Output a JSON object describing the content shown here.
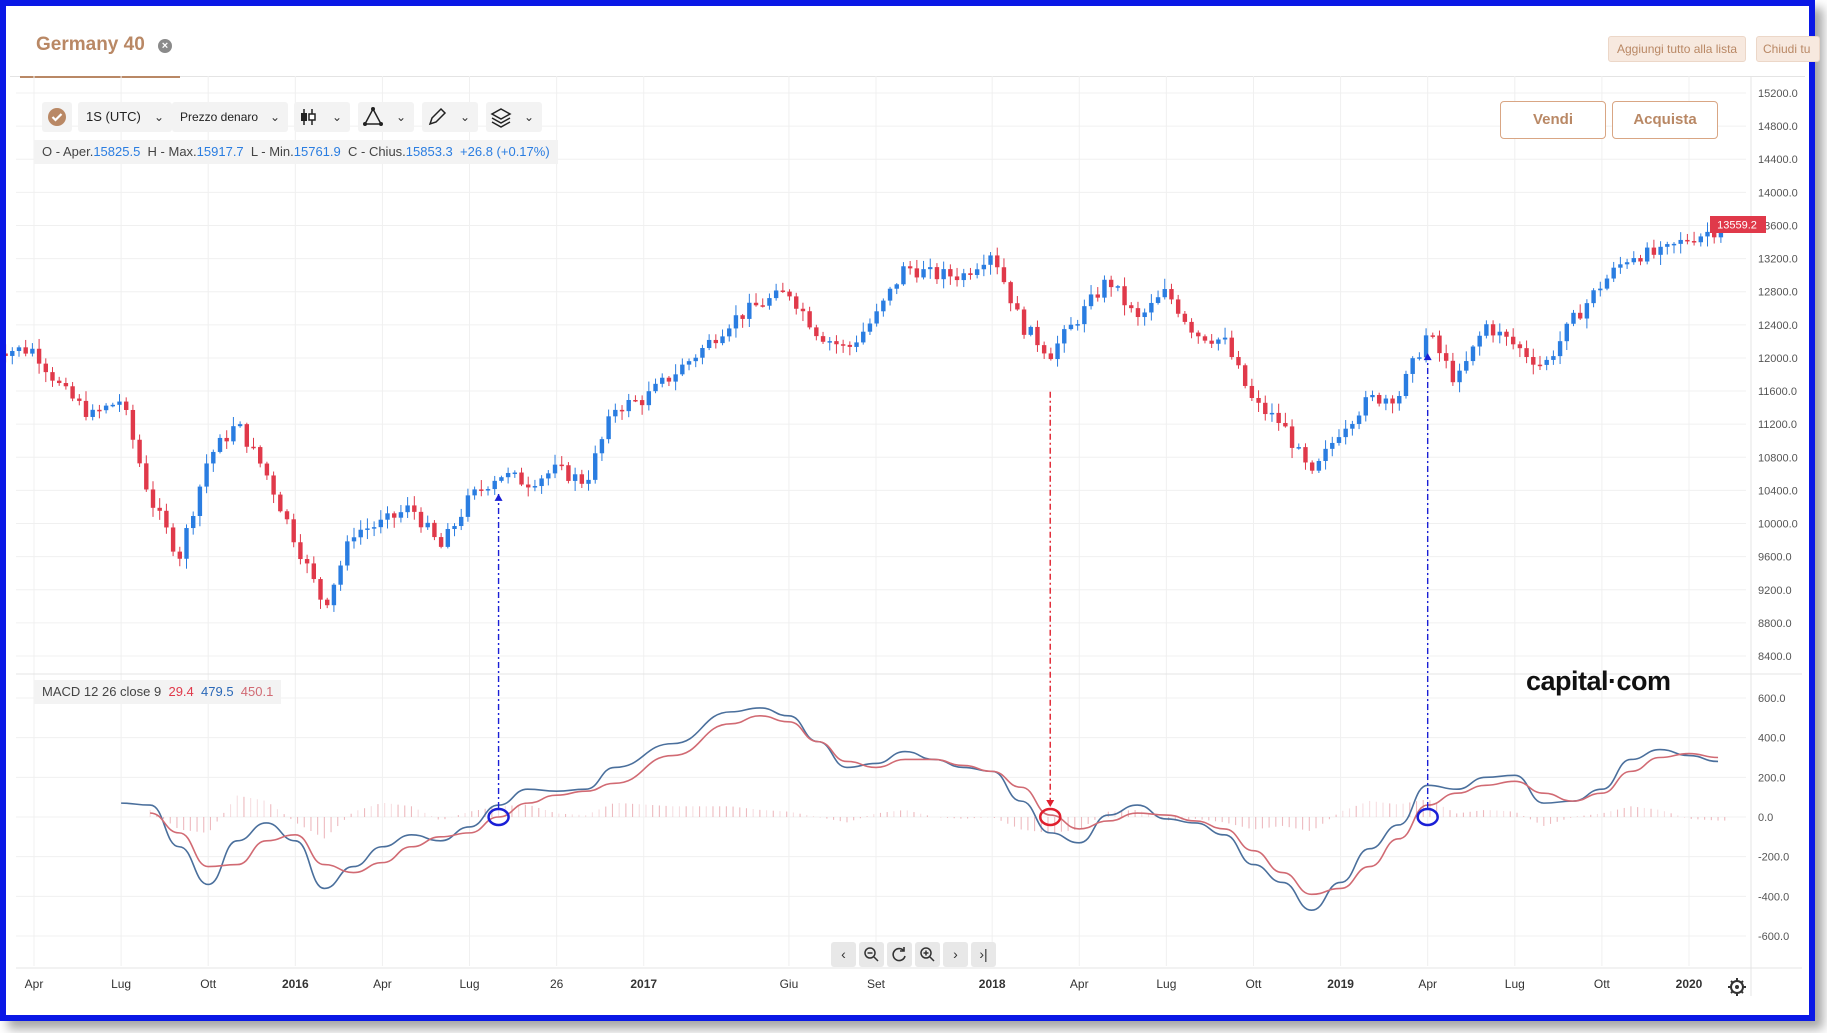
{
  "tab": {
    "title": "Germany 40"
  },
  "top_buttons": {
    "add_all": "Aggiungi tutto alla lista",
    "close_all": "Chiudi tu"
  },
  "toolbar": {
    "timeframe": "1S (UTC)",
    "price_type": "Prezzo denaro"
  },
  "ohlc": {
    "open_label": "O - Aper.",
    "open": "15825.5",
    "high_label": "H - Max.",
    "high": "15917.7",
    "low_label": "L - Min.",
    "low": "15761.9",
    "close_label": "C - Chius.",
    "close": "15853.3",
    "change": "+26.8 (+0.17%)"
  },
  "trade": {
    "sell": "Vendi",
    "buy": "Acquista"
  },
  "macd_legend": {
    "label": "MACD 12 26 close 9",
    "v1": "29.4",
    "v2": "479.5",
    "v3": "450.1"
  },
  "logo": "capital·com",
  "colors": {
    "up": "#2a7de1",
    "down": "#e0394a",
    "macd_line": "#4a6f9c",
    "signal_line": "#d16a73",
    "accent": "#b98865",
    "arrow_blue": "#1a1fd6",
    "arrow_red": "#e0202e"
  },
  "chart_data": [
    {
      "type": "candlestick",
      "title": "Germany 40",
      "price_axis_ticks": [
        "15200.0",
        "14800.0",
        "14400.0",
        "14000.0",
        "13600.0",
        "13200.0",
        "12800.0",
        "12400.0",
        "12000.0",
        "11600.0",
        "11200.0",
        "10800.0",
        "10400.0",
        "10000.0",
        "9600.0",
        "9200.0",
        "8800.0",
        "8400.0"
      ],
      "last_price_label": "13559.2",
      "ylim": [
        8400,
        15200
      ],
      "x_tick_labels": [
        "Apr",
        "Lug",
        "Ott",
        "2016",
        "Apr",
        "Lug",
        "26",
        "2017",
        "Giu",
        "Set",
        "2018",
        "Apr",
        "Lug",
        "Ott",
        "2019",
        "Apr",
        "Lug",
        "Ott",
        "2020"
      ],
      "close_path": [
        {
          "date": "2015-04",
          "close": 12100
        },
        {
          "date": "2015-05",
          "close": 11600
        },
        {
          "date": "2015-06",
          "close": 11300
        },
        {
          "date": "2015-07",
          "close": 11500
        },
        {
          "date": "2015-08",
          "close": 10300
        },
        {
          "date": "2015-09",
          "close": 9600
        },
        {
          "date": "2015-10",
          "close": 10800
        },
        {
          "date": "2015-11",
          "close": 11200
        },
        {
          "date": "2015-12",
          "close": 10600
        },
        {
          "date": "2016-01",
          "close": 9800
        },
        {
          "date": "2016-02",
          "close": 9000
        },
        {
          "date": "2016-03",
          "close": 9900
        },
        {
          "date": "2016-04",
          "close": 10000
        },
        {
          "date": "2016-05",
          "close": 10200
        },
        {
          "date": "2016-06",
          "close": 9700
        },
        {
          "date": "2016-07",
          "close": 10300
        },
        {
          "date": "2016-08",
          "close": 10600
        },
        {
          "date": "2016-09",
          "close": 10500
        },
        {
          "date": "2016-10",
          "close": 10650
        },
        {
          "date": "2016-11",
          "close": 10500
        },
        {
          "date": "2016-12",
          "close": 11400
        },
        {
          "date": "2017-01",
          "close": 11500
        },
        {
          "date": "2017-03",
          "close": 12100
        },
        {
          "date": "2017-04",
          "close": 12450
        },
        {
          "date": "2017-05",
          "close": 12650
        },
        {
          "date": "2017-06",
          "close": 12800
        },
        {
          "date": "2017-07",
          "close": 12300
        },
        {
          "date": "2017-08",
          "close": 12100
        },
        {
          "date": "2017-09",
          "close": 12500
        },
        {
          "date": "2017-10",
          "close": 13100
        },
        {
          "date": "2017-11",
          "close": 13000
        },
        {
          "date": "2017-12",
          "close": 13000
        },
        {
          "date": "2018-01",
          "close": 13300
        },
        {
          "date": "2018-02",
          "close": 12400
        },
        {
          "date": "2018-03",
          "close": 12050
        },
        {
          "date": "2018-04",
          "close": 12500
        },
        {
          "date": "2018-05",
          "close": 12950
        },
        {
          "date": "2018-06",
          "close": 12450
        },
        {
          "date": "2018-07",
          "close": 12800
        },
        {
          "date": "2018-08",
          "close": 12300
        },
        {
          "date": "2018-09",
          "close": 12200
        },
        {
          "date": "2018-10",
          "close": 11450
        },
        {
          "date": "2018-11",
          "close": 11200
        },
        {
          "date": "2018-12",
          "close": 10550
        },
        {
          "date": "2019-01",
          "close": 11150
        },
        {
          "date": "2019-02",
          "close": 11500
        },
        {
          "date": "2019-03",
          "close": 11550
        },
        {
          "date": "2019-04",
          "close": 12300
        },
        {
          "date": "2019-05",
          "close": 11700
        },
        {
          "date": "2019-06",
          "close": 12400
        },
        {
          "date": "2019-07",
          "close": 12150
        },
        {
          "date": "2019-08",
          "close": 11900
        },
        {
          "date": "2019-09",
          "close": 12450
        },
        {
          "date": "2019-10",
          "close": 12900
        },
        {
          "date": "2019-11",
          "close": 13250
        },
        {
          "date": "2019-12",
          "close": 13250
        },
        {
          "date": "2020-01",
          "close": 13450
        },
        {
          "date": "2020-02",
          "close": 13560
        }
      ]
    },
    {
      "type": "line",
      "title": "MACD 12 26 close 9",
      "y_axis_ticks": [
        "600.0",
        "400.0",
        "200.0",
        "0.0",
        "-200.0",
        "-400.0",
        "-600.0"
      ],
      "ylim": [
        -600,
        600
      ],
      "series": [
        {
          "name": "MACD",
          "values": [
            {
              "date": "2015-07",
              "y": 70
            },
            {
              "date": "2015-08",
              "y": 60
            },
            {
              "date": "2015-09",
              "y": -150
            },
            {
              "date": "2015-10",
              "y": -340
            },
            {
              "date": "2015-11",
              "y": -120
            },
            {
              "date": "2015-12",
              "y": -30
            },
            {
              "date": "2016-01",
              "y": -120
            },
            {
              "date": "2016-02",
              "y": -360
            },
            {
              "date": "2016-03",
              "y": -250
            },
            {
              "date": "2016-04",
              "y": -150
            },
            {
              "date": "2016-05",
              "y": -90
            },
            {
              "date": "2016-06",
              "y": -120
            },
            {
              "date": "2016-07",
              "y": -50
            },
            {
              "date": "2016-08",
              "y": 60
            },
            {
              "date": "2016-09",
              "y": 140
            },
            {
              "date": "2016-10",
              "y": 130
            },
            {
              "date": "2016-11",
              "y": 140
            },
            {
              "date": "2016-12",
              "y": 250
            },
            {
              "date": "2017-02",
              "y": 370
            },
            {
              "date": "2017-04",
              "y": 530
            },
            {
              "date": "2017-05",
              "y": 550
            },
            {
              "date": "2017-06",
              "y": 510
            },
            {
              "date": "2017-07",
              "y": 380
            },
            {
              "date": "2017-08",
              "y": 250
            },
            {
              "date": "2017-09",
              "y": 270
            },
            {
              "date": "2017-10",
              "y": 330
            },
            {
              "date": "2017-11",
              "y": 290
            },
            {
              "date": "2017-12",
              "y": 250
            },
            {
              "date": "2018-01",
              "y": 230
            },
            {
              "date": "2018-02",
              "y": 80
            },
            {
              "date": "2018-03",
              "y": -80
            },
            {
              "date": "2018-04",
              "y": -130
            },
            {
              "date": "2018-05",
              "y": 10
            },
            {
              "date": "2018-06",
              "y": 60
            },
            {
              "date": "2018-07",
              "y": -10
            },
            {
              "date": "2018-08",
              "y": -30
            },
            {
              "date": "2018-09",
              "y": -90
            },
            {
              "date": "2018-10",
              "y": -240
            },
            {
              "date": "2018-11",
              "y": -330
            },
            {
              "date": "2018-12",
              "y": -470
            },
            {
              "date": "2019-01",
              "y": -330
            },
            {
              "date": "2019-02",
              "y": -160
            },
            {
              "date": "2019-03",
              "y": -40
            },
            {
              "date": "2019-04",
              "y": 160
            },
            {
              "date": "2019-05",
              "y": 140
            },
            {
              "date": "2019-06",
              "y": 200
            },
            {
              "date": "2019-07",
              "y": 210
            },
            {
              "date": "2019-08",
              "y": 70
            },
            {
              "date": "2019-09",
              "y": 80
            },
            {
              "date": "2019-10",
              "y": 140
            },
            {
              "date": "2019-11",
              "y": 290
            },
            {
              "date": "2019-12",
              "y": 340
            },
            {
              "date": "2020-01",
              "y": 310
            },
            {
              "date": "2020-02",
              "y": 280
            }
          ]
        },
        {
          "name": "Signal",
          "values": [
            {
              "date": "2015-08",
              "y": 20
            },
            {
              "date": "2015-09",
              "y": -80
            },
            {
              "date": "2015-10",
              "y": -250
            },
            {
              "date": "2015-11",
              "y": -240
            },
            {
              "date": "2015-12",
              "y": -120
            },
            {
              "date": "2016-01",
              "y": -90
            },
            {
              "date": "2016-02",
              "y": -240
            },
            {
              "date": "2016-03",
              "y": -280
            },
            {
              "date": "2016-04",
              "y": -230
            },
            {
              "date": "2016-05",
              "y": -150
            },
            {
              "date": "2016-06",
              "y": -100
            },
            {
              "date": "2016-07",
              "y": -80
            },
            {
              "date": "2016-08",
              "y": 0
            },
            {
              "date": "2016-09",
              "y": 70
            },
            {
              "date": "2016-10",
              "y": 110
            },
            {
              "date": "2016-11",
              "y": 130
            },
            {
              "date": "2016-12",
              "y": 170
            },
            {
              "date": "2017-02",
              "y": 310
            },
            {
              "date": "2017-04",
              "y": 470
            },
            {
              "date": "2017-05",
              "y": 510
            },
            {
              "date": "2017-06",
              "y": 480
            },
            {
              "date": "2017-07",
              "y": 380
            },
            {
              "date": "2017-08",
              "y": 280
            },
            {
              "date": "2017-09",
              "y": 250
            },
            {
              "date": "2017-10",
              "y": 290
            },
            {
              "date": "2017-11",
              "y": 290
            },
            {
              "date": "2017-12",
              "y": 260
            },
            {
              "date": "2018-01",
              "y": 230
            },
            {
              "date": "2018-02",
              "y": 150
            },
            {
              "date": "2018-03",
              "y": 10
            },
            {
              "date": "2018-04",
              "y": -60
            },
            {
              "date": "2018-05",
              "y": -20
            },
            {
              "date": "2018-06",
              "y": 20
            },
            {
              "date": "2018-07",
              "y": 10
            },
            {
              "date": "2018-08",
              "y": -20
            },
            {
              "date": "2018-09",
              "y": -60
            },
            {
              "date": "2018-10",
              "y": -170
            },
            {
              "date": "2018-11",
              "y": -280
            },
            {
              "date": "2018-12",
              "y": -390
            },
            {
              "date": "2019-01",
              "y": -360
            },
            {
              "date": "2019-02",
              "y": -250
            },
            {
              "date": "2019-03",
              "y": -110
            },
            {
              "date": "2019-04",
              "y": 60
            },
            {
              "date": "2019-05",
              "y": 120
            },
            {
              "date": "2019-06",
              "y": 160
            },
            {
              "date": "2019-07",
              "y": 180
            },
            {
              "date": "2019-08",
              "y": 120
            },
            {
              "date": "2019-09",
              "y": 80
            },
            {
              "date": "2019-10",
              "y": 120
            },
            {
              "date": "2019-11",
              "y": 230
            },
            {
              "date": "2019-12",
              "y": 300
            },
            {
              "date": "2020-01",
              "y": 320
            },
            {
              "date": "2020-02",
              "y": 300
            }
          ]
        }
      ],
      "crossovers": [
        {
          "date": "2016-08",
          "direction": "bullish",
          "color": "blue"
        },
        {
          "date": "2018-03",
          "direction": "bearish",
          "color": "red"
        },
        {
          "date": "2019-04",
          "direction": "bullish",
          "color": "blue"
        }
      ]
    }
  ]
}
